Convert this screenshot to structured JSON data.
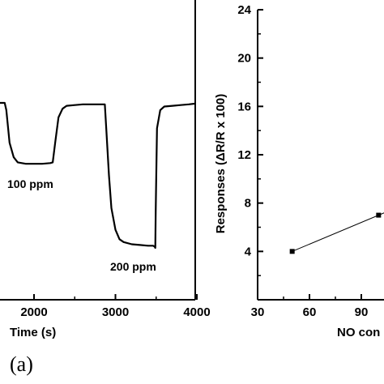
{
  "panel_label": "(a)",
  "chart_data": [
    {
      "type": "line",
      "xlabel": "Time (s)",
      "ylabel": "",
      "xlim": [
        1000,
        4000
      ],
      "x_ticks": [
        2000,
        3000,
        4000
      ],
      "annotations": [
        "100 ppm",
        "200 ppm"
      ],
      "series": [
        {
          "x": [
            1000,
            1640,
            1660,
            1700,
            1750,
            1800,
            1900,
            2000,
            2100,
            2200,
            2230,
            2260,
            2300,
            2350,
            2400,
            2500,
            2600,
            2700,
            2800,
            2870,
            2890,
            2920,
            2950,
            3000,
            3050,
            3100,
            3200,
            3300,
            3400,
            3460,
            3480,
            3490,
            3495,
            3510,
            3550,
            3600,
            3700,
            3800,
            3900,
            3980
          ],
          "y": [
            0.0,
            0.0,
            -0.1,
            -0.55,
            -0.75,
            -0.82,
            -0.84,
            -0.84,
            -0.84,
            -0.83,
            -0.82,
            -0.55,
            -0.2,
            -0.08,
            -0.04,
            -0.03,
            -0.02,
            -0.02,
            -0.02,
            -0.02,
            -0.4,
            -1.0,
            -1.45,
            -1.75,
            -1.88,
            -1.92,
            -1.95,
            -1.96,
            -1.97,
            -1.97,
            -1.98,
            -2.0,
            -1.5,
            -0.35,
            -0.1,
            -0.05,
            -0.04,
            -0.03,
            -0.02,
            -0.01
          ]
        }
      ]
    },
    {
      "type": "scatter",
      "xlabel": "NO con",
      "ylabel": "Responses (ΔR/R x 100)",
      "xlim": [
        30,
        110
      ],
      "ylim": [
        0,
        24
      ],
      "x_ticks": [
        30,
        60,
        90
      ],
      "y_ticks": [
        4,
        8,
        12,
        16,
        20,
        24
      ],
      "series": [
        {
          "x": [
            50,
            100
          ],
          "y": [
            4,
            7
          ],
          "trend": "linear fit"
        }
      ]
    }
  ]
}
